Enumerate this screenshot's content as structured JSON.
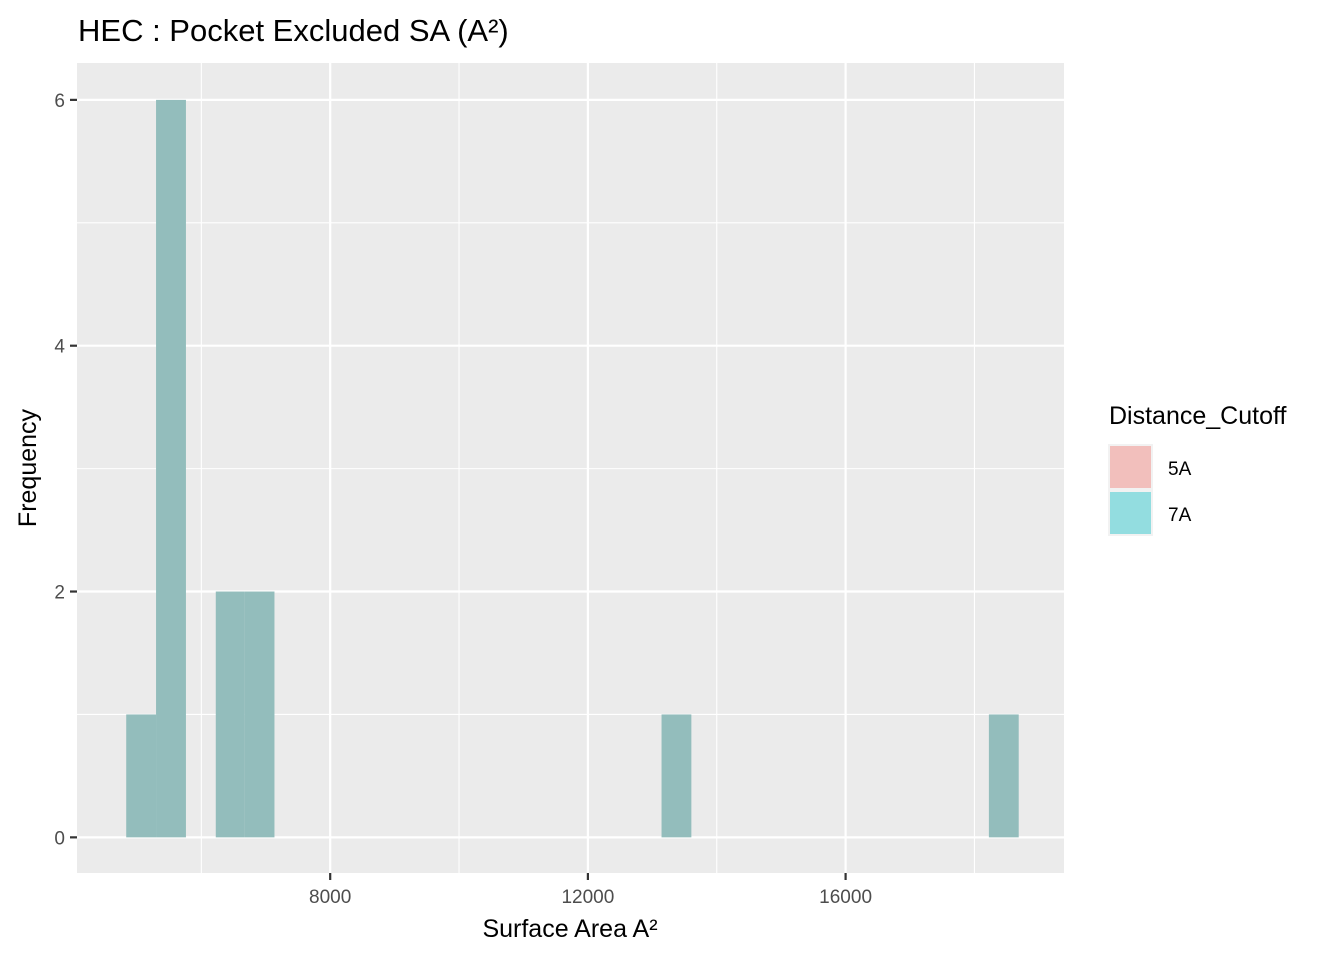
{
  "chart_data": {
    "type": "bar",
    "subtype": "histogram",
    "title": "HEC : Pocket Excluded SA (A²)",
    "xlabel": "Surface Area A²",
    "ylabel": "Frequency",
    "xlim": [
      4070,
      19390
    ],
    "ylim": [
      -0.29,
      6.3
    ],
    "x_ticks": [
      8000,
      12000,
      16000
    ],
    "x_tick_labels": [
      "8000",
      "12000",
      "16000"
    ],
    "x_minor_gridlines": [
      6000,
      10000,
      14000,
      18000
    ],
    "y_ticks": [
      0,
      2,
      4,
      6
    ],
    "y_tick_labels": [
      "0",
      "2",
      "4",
      "6"
    ],
    "y_minor_gridlines": [
      1,
      3,
      5
    ],
    "grid": true,
    "legend": {
      "title": "Distance_Cutoff",
      "position": "right",
      "entries": [
        {
          "label": "5A",
          "color": "#F8766D"
        },
        {
          "label": "7A",
          "color": "#00BFC4"
        }
      ]
    },
    "series": [
      {
        "name": "5A",
        "color": "#F8766D",
        "bins": [
          {
            "x0": 4834,
            "x1": 5297,
            "count": 1
          },
          {
            "x0": 5297,
            "x1": 5761,
            "count": 6
          },
          {
            "x0": 6224,
            "x1": 6672,
            "count": 2
          },
          {
            "x0": 6672,
            "x1": 7135,
            "count": 2
          },
          {
            "x0": 13143,
            "x1": 13606,
            "count": 1
          },
          {
            "x0": 18224,
            "x1": 18687,
            "count": 1
          }
        ]
      },
      {
        "name": "7A",
        "color": "#00BFC4",
        "bins": [
          {
            "x0": 4834,
            "x1": 5297,
            "count": 1
          },
          {
            "x0": 5297,
            "x1": 5761,
            "count": 6
          },
          {
            "x0": 6224,
            "x1": 6672,
            "count": 2
          },
          {
            "x0": 6672,
            "x1": 7135,
            "count": 2
          },
          {
            "x0": 13143,
            "x1": 13606,
            "count": 1
          },
          {
            "x0": 18224,
            "x1": 18687,
            "count": 1
          }
        ]
      }
    ],
    "overlap_note": "Both series overlap exactly with alpha; rendered overlap color",
    "overlap_color": "#93BDBC",
    "panel_background": "#EBEBEB",
    "gridline_color": "#FFFFFF"
  }
}
